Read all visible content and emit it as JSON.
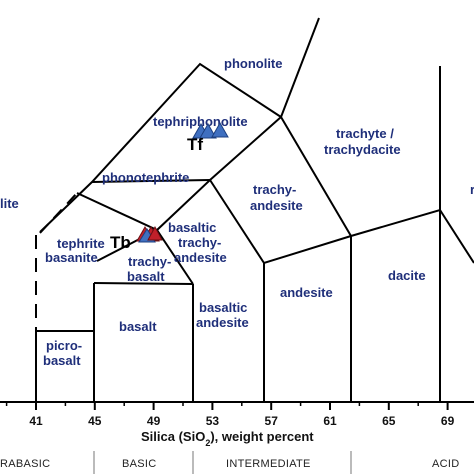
{
  "diagram": {
    "x_axis": {
      "label_pre": "Silica (SiO",
      "label_sub": "2",
      "label_post": "), weight percent",
      "ticks": [
        "41",
        "45",
        "49",
        "53",
        "57",
        "61",
        "65",
        "69"
      ],
      "groups": [
        "RABASIC",
        "BASIC",
        "INTERMEDIATE",
        "ACID"
      ]
    },
    "fields": {
      "phonolite": "phonolite",
      "tephriphonolite": "tephriphonolite",
      "trachyte_1": "trachyte /",
      "trachyte_2": "trachydacite",
      "phonotephrite": "phonotephrite",
      "trachyandesite_1": "trachy-",
      "trachyandesite_2": "andesite",
      "foidite": "lite",
      "tephrite_1": "tephrite",
      "tephrite_2": "basanite",
      "bta_1": "basaltic",
      "bta_2": "trachy-",
      "bta_3": "andesite",
      "tb_1": "trachy-",
      "tb_2": "basalt",
      "dacite": "dacite",
      "andesite": "andesite",
      "basaltic_andesite_1": "basaltic",
      "basaltic_andesite_2": "andesite",
      "basalt": "basalt",
      "picro_1": "picro-",
      "picro_2": "basalt",
      "rhyolite_partial": "r"
    },
    "samples": {
      "tf_label": "Tf",
      "tb_label": "Tb",
      "tf_color": "#3f6fc0",
      "tb_color": "#c0202a",
      "tb_second_color": "#3f6fc0"
    }
  }
}
